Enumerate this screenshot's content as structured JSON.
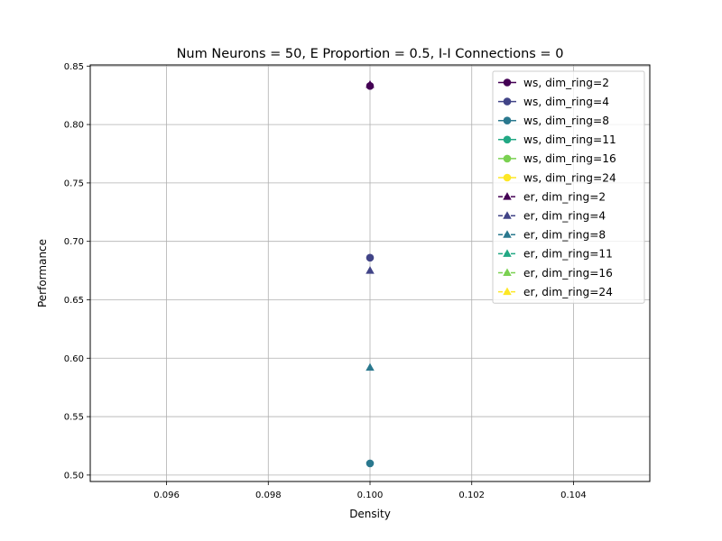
{
  "chart_data": {
    "type": "scatter",
    "title": "Num Neurons = 50, E Proportion = 0.5, I-I Connections = 0",
    "xlabel": "Density",
    "ylabel": "Performance",
    "xlim": [
      0.0945,
      0.1055
    ],
    "ylim": [
      0.4945,
      0.851
    ],
    "xticks": [
      0.096,
      0.098,
      0.1,
      0.102,
      0.104
    ],
    "xtick_labels": [
      "0.096",
      "0.098",
      "0.100",
      "0.102",
      "0.104"
    ],
    "yticks": [
      0.5,
      0.55,
      0.6,
      0.65,
      0.7,
      0.75,
      0.8,
      0.85
    ],
    "ytick_labels": [
      "0.50",
      "0.55",
      "0.60",
      "0.65",
      "0.70",
      "0.75",
      "0.80",
      "0.85"
    ],
    "grid": true,
    "legend_position": "top-right",
    "series": [
      {
        "name": "ws, dim_ring=2",
        "color": "#440154",
        "marker": "circle",
        "dashed": false,
        "x": [
          0.1
        ],
        "y": [
          0.833
        ]
      },
      {
        "name": "ws, dim_ring=4",
        "color": "#414487",
        "marker": "circle",
        "dashed": false,
        "x": [
          0.1
        ],
        "y": [
          0.686
        ]
      },
      {
        "name": "ws, dim_ring=8",
        "color": "#2a788e",
        "marker": "circle",
        "dashed": false,
        "x": [
          0.1
        ],
        "y": [
          0.51
        ]
      },
      {
        "name": "ws, dim_ring=11",
        "color": "#22a884",
        "marker": "circle",
        "dashed": false,
        "x": [],
        "y": []
      },
      {
        "name": "ws, dim_ring=16",
        "color": "#7ad151",
        "marker": "circle",
        "dashed": false,
        "x": [],
        "y": []
      },
      {
        "name": "ws, dim_ring=24",
        "color": "#fde725",
        "marker": "circle",
        "dashed": false,
        "x": [],
        "y": []
      },
      {
        "name": "er, dim_ring=2",
        "color": "#440154",
        "marker": "triangle",
        "dashed": true,
        "x": [
          0.1
        ],
        "y": [
          0.834
        ]
      },
      {
        "name": "er, dim_ring=4",
        "color": "#414487",
        "marker": "triangle",
        "dashed": true,
        "x": [
          0.1
        ],
        "y": [
          0.675
        ]
      },
      {
        "name": "er, dim_ring=8",
        "color": "#2a788e",
        "marker": "triangle",
        "dashed": true,
        "x": [
          0.1
        ],
        "y": [
          0.592
        ]
      },
      {
        "name": "er, dim_ring=11",
        "color": "#22a884",
        "marker": "triangle",
        "dashed": true,
        "x": [],
        "y": []
      },
      {
        "name": "er, dim_ring=16",
        "color": "#7ad151",
        "marker": "triangle",
        "dashed": true,
        "x": [],
        "y": []
      },
      {
        "name": "er, dim_ring=24",
        "color": "#fde725",
        "marker": "triangle",
        "dashed": true,
        "x": [],
        "y": []
      }
    ]
  }
}
